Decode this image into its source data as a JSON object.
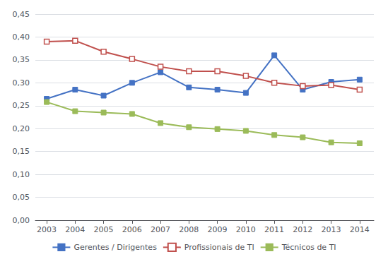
{
  "chart_data": {
    "type": "line",
    "x": [
      2003,
      2004,
      2005,
      2006,
      2007,
      2008,
      2009,
      2010,
      2011,
      2012,
      2013,
      2014
    ],
    "series": [
      {
        "name": "Gerentes / Dirigentes",
        "color": "#4472c4",
        "marker": "square",
        "values": [
          0.265,
          0.285,
          0.272,
          0.3,
          0.323,
          0.29,
          0.285,
          0.278,
          0.36,
          0.285,
          0.302,
          0.307
        ]
      },
      {
        "name": "Profissionais de TI",
        "color": "#c0504d",
        "marker": "open_square",
        "values": [
          0.39,
          0.392,
          0.368,
          0.352,
          0.335,
          0.325,
          0.325,
          0.315,
          0.3,
          0.293,
          0.295,
          0.285
        ]
      },
      {
        "name": "Técnicos de TI",
        "color": "#9bbb59",
        "marker": "square",
        "values": [
          0.258,
          0.238,
          0.235,
          0.232,
          0.212,
          0.203,
          0.199,
          0.195,
          0.186,
          0.181,
          0.17,
          0.168
        ]
      }
    ],
    "xlim": [
      2002.6,
      2014.5
    ],
    "xticks": [
      2003,
      2004,
      2005,
      2006,
      2007,
      2008,
      2009,
      2010,
      2011,
      2012,
      2013,
      2014
    ],
    "ylim": [
      0.0,
      0.45
    ],
    "yticks": [
      {
        "value": 0.0,
        "label": "0,00"
      },
      {
        "value": 0.05,
        "label": "0,05"
      },
      {
        "value": 0.1,
        "label": "0,10"
      },
      {
        "value": 0.15,
        "label": "0,15"
      },
      {
        "value": 0.2,
        "label": "0,20"
      },
      {
        "value": 0.25,
        "label": "0,25"
      },
      {
        "value": 0.3,
        "label": "0,30"
      },
      {
        "value": 0.35,
        "label": "0,35"
      },
      {
        "value": 0.4,
        "label": "0,40"
      },
      {
        "value": 0.45,
        "label": "0,45"
      }
    ],
    "grid": true,
    "legend": "bottom"
  }
}
